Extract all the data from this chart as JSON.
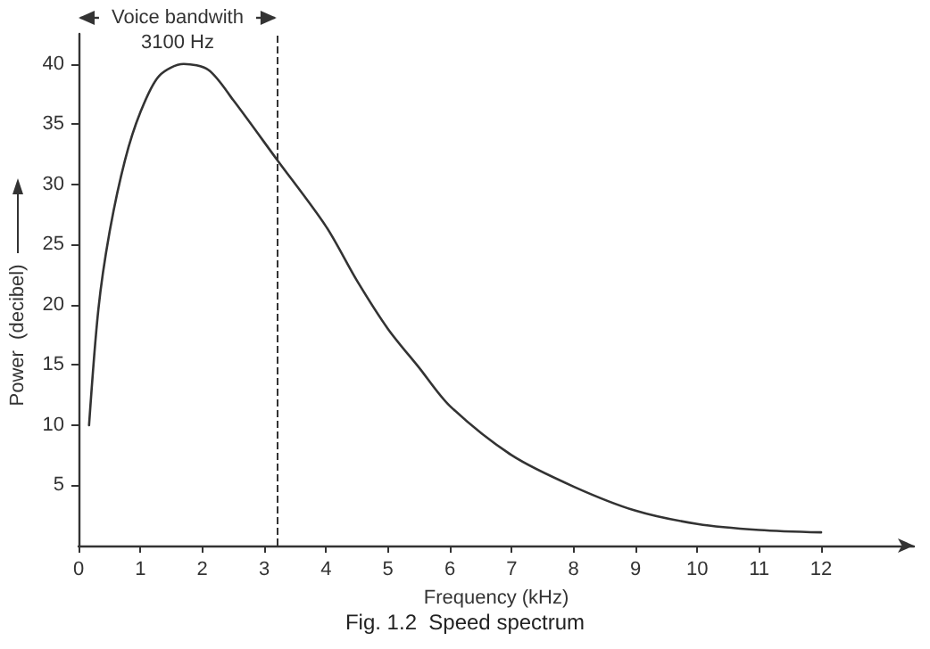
{
  "chart_data": {
    "type": "line",
    "title": "Fig. 1.2  Speed spectrum",
    "xlabel": "Frequency (kHz)",
    "ylabel": "Power  (decibel)",
    "x": [
      0.17,
      0.32,
      0.5,
      0.75,
      1,
      1.3,
      1.7,
      2.1,
      2.5,
      3.2,
      4,
      4.5,
      5,
      5.5,
      6,
      7,
      8,
      9,
      10,
      11,
      12
    ],
    "series": [
      {
        "color": "#333333",
        "values": [
          10,
          19.6,
          26,
          32,
          36,
          39,
          40,
          39.5,
          37,
          32.1,
          26.5,
          22,
          18,
          14.8,
          11.6,
          7.5,
          4.9,
          2.9,
          1.8,
          1.3,
          1.1
        ]
      }
    ],
    "xlim": [
      0,
      13.5
    ],
    "xticks": [
      0,
      1,
      2,
      3,
      4,
      5,
      6,
      7,
      8,
      9,
      10,
      11,
      12
    ],
    "ylim": [
      0,
      42.5
    ],
    "yticks": [
      5,
      10,
      15,
      20,
      25,
      30,
      35,
      40
    ],
    "ref_lines": [
      {
        "axis": "x",
        "value": 3.2,
        "label": null,
        "color": "#333333",
        "line_style": "dashed"
      }
    ],
    "annotations": [
      "Voice bandwith\n3100 Hz"
    ],
    "grid": false,
    "marker": "none",
    "line_style": "solid"
  }
}
